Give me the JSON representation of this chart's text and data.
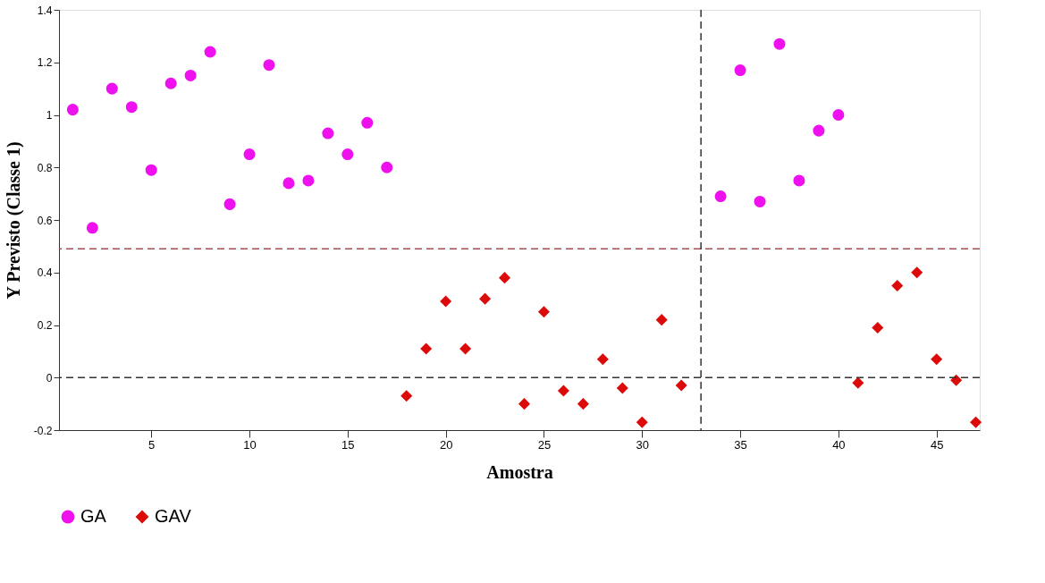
{
  "chart_data": {
    "type": "scatter",
    "xlabel": "Amostra",
    "ylabel": "Y Previsto (Classe 1)",
    "xlim": [
      0.3,
      47.2
    ],
    "xticks": [
      5,
      10,
      15,
      20,
      25,
      30,
      35,
      40,
      45
    ],
    "ylim": [
      -0.2,
      1.4
    ],
    "yticks": [
      -0.2,
      0,
      0.2,
      0.4,
      0.6,
      0.8,
      1,
      1.2,
      1.4
    ],
    "grid": false,
    "legend": "bottom",
    "series": [
      {
        "name": "GA",
        "color": "#ee10ee",
        "marker": "circle",
        "x": [
          1,
          2,
          3,
          4,
          5,
          6,
          7,
          8,
          9,
          10,
          11,
          12,
          13,
          14,
          15,
          16,
          17,
          34,
          35,
          36,
          37,
          38,
          39,
          40
        ],
        "values": [
          1.02,
          0.57,
          1.1,
          1.03,
          0.79,
          1.12,
          1.15,
          1.24,
          0.66,
          0.85,
          1.19,
          0.74,
          0.75,
          0.93,
          0.85,
          0.97,
          0.8,
          0.69,
          1.17,
          0.67,
          1.27,
          0.75,
          0.94,
          1.0
        ]
      },
      {
        "name": "GAV",
        "color": "#dd0a0a",
        "marker": "diamond",
        "x": [
          18,
          19,
          20,
          21,
          22,
          23,
          24,
          25,
          26,
          27,
          28,
          29,
          30,
          31,
          32,
          41,
          42,
          43,
          44,
          45,
          46,
          47
        ],
        "values": [
          -0.07,
          0.11,
          0.29,
          0.11,
          0.3,
          0.38,
          -0.1,
          0.25,
          -0.05,
          -0.1,
          0.07,
          -0.04,
          -0.17,
          0.22,
          -0.03,
          -0.02,
          0.19,
          0.35,
          0.4,
          0.07,
          -0.01,
          -0.17
        ]
      }
    ],
    "ref_lines": [
      {
        "axis": "y",
        "value": 0.49,
        "color": "#a05050",
        "line_style": "dashed"
      },
      {
        "axis": "y",
        "value": 0,
        "color": "#333333",
        "line_style": "dashed"
      },
      {
        "axis": "x",
        "value": 33,
        "color": "#333333",
        "line_style": "dashed"
      }
    ]
  }
}
